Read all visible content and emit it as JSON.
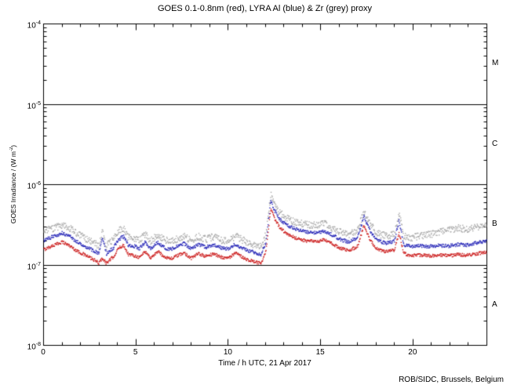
{
  "chart_data": {
    "type": "scatter",
    "title": "GOES 0.1-0.8nm (red), LYRA Al (blue) & Zr (grey) proxy",
    "xlabel": "Time / h UTC, 21 Apr 2017",
    "ylabel_parts": {
      "pre": "GOES Irradiance / (W m",
      "sup": "-2",
      "post": ")"
    },
    "credit": "ROB/SIDC, Brussels, Belgium",
    "x_range": [
      0,
      24
    ],
    "x_major_ticks": [
      0,
      5,
      10,
      15,
      20
    ],
    "x_minor_step": 1,
    "y_log_range": [
      -8,
      -4
    ],
    "y_tick_exponents": [
      -4,
      -5,
      -6,
      -7,
      -8
    ],
    "hlines_exponents": [
      -5,
      -6,
      -7
    ],
    "flare_classes": [
      {
        "label": "M",
        "decade": -5
      },
      {
        "label": "C",
        "decade": -6
      },
      {
        "label": "B",
        "decade": -7
      },
      {
        "label": "A",
        "decade": -8
      }
    ],
    "unit_scale": 1e-07,
    "x": [
      0,
      0.4,
      0.8,
      1.0,
      1.4,
      1.8,
      2.2,
      2.6,
      3.0,
      3.2,
      3.4,
      3.8,
      4.1,
      4.35,
      4.6,
      4.9,
      5.2,
      5.5,
      5.8,
      6.2,
      6.5,
      6.9,
      7.3,
      7.6,
      8.0,
      8.4,
      8.8,
      9.2,
      9.6,
      10.0,
      10.4,
      10.7,
      11.0,
      11.4,
      11.8,
      12.05,
      12.3,
      12.5,
      12.8,
      13.2,
      13.7,
      14.2,
      14.8,
      15.2,
      15.5,
      16.0,
      16.5,
      17.0,
      17.35,
      17.7,
      18.1,
      18.6,
      19.0,
      19.25,
      19.5,
      19.9,
      20.4,
      20.9,
      21.4,
      21.9,
      22.4,
      22.9,
      23.4,
      24.0
    ],
    "series": [
      {
        "name": "GOES 0.1-0.8nm",
        "color": "#cc2020",
        "noise": 0.045,
        "values": [
          1.55,
          1.7,
          1.85,
          1.95,
          1.75,
          1.5,
          1.35,
          1.2,
          1.06,
          1.22,
          1.05,
          1.28,
          1.65,
          1.75,
          1.35,
          1.32,
          1.24,
          1.48,
          1.22,
          1.48,
          1.28,
          1.2,
          1.32,
          1.42,
          1.22,
          1.38,
          1.28,
          1.38,
          1.26,
          1.22,
          1.4,
          1.28,
          1.18,
          1.1,
          1.04,
          1.5,
          5.0,
          3.8,
          2.9,
          2.4,
          2.15,
          2.0,
          1.95,
          2.05,
          1.9,
          1.65,
          1.5,
          1.7,
          3.1,
          2.0,
          1.55,
          1.45,
          1.55,
          2.5,
          1.4,
          1.3,
          1.33,
          1.3,
          1.34,
          1.3,
          1.35,
          1.32,
          1.38,
          1.45
        ]
      },
      {
        "name": "LYRA Al proxy",
        "color": "#2a2ab8",
        "noise": 0.05,
        "values": [
          2.0,
          2.2,
          2.4,
          2.5,
          2.3,
          1.95,
          1.75,
          1.55,
          1.38,
          2.2,
          1.37,
          1.66,
          2.12,
          2.25,
          1.75,
          1.72,
          1.61,
          1.92,
          1.59,
          1.92,
          1.66,
          1.56,
          1.72,
          1.85,
          1.59,
          1.79,
          1.66,
          1.79,
          1.64,
          1.59,
          1.82,
          1.66,
          1.53,
          1.43,
          1.35,
          1.95,
          6.3,
          4.8,
          3.7,
          3.1,
          2.8,
          2.6,
          2.5,
          2.65,
          2.45,
          2.12,
          1.93,
          2.2,
          4.0,
          2.6,
          2.0,
          1.87,
          2.0,
          3.6,
          1.8,
          1.69,
          1.73,
          1.7,
          1.75,
          1.72,
          1.8,
          1.78,
          1.88,
          2.0
        ]
      },
      {
        "name": "LYRA Zr proxy",
        "color": "#a8a8a8",
        "noise": 0.1,
        "values": [
          2.6,
          2.82,
          3.0,
          3.15,
          2.9,
          2.5,
          2.2,
          1.95,
          1.74,
          2.6,
          1.72,
          2.1,
          2.7,
          2.85,
          2.2,
          2.16,
          2.02,
          2.42,
          2.0,
          2.42,
          2.1,
          1.96,
          2.16,
          2.33,
          2.0,
          2.26,
          2.1,
          2.26,
          2.06,
          2.0,
          2.3,
          2.1,
          1.93,
          1.8,
          1.7,
          2.45,
          7.5,
          5.8,
          4.5,
          3.8,
          3.4,
          3.2,
          3.1,
          3.3,
          3.0,
          2.62,
          2.38,
          2.7,
          4.7,
          3.2,
          2.45,
          2.3,
          2.5,
          4.5,
          2.3,
          2.2,
          2.3,
          2.4,
          2.6,
          2.7,
          2.9,
          2.8,
          3.0,
          3.1
        ]
      }
    ]
  }
}
